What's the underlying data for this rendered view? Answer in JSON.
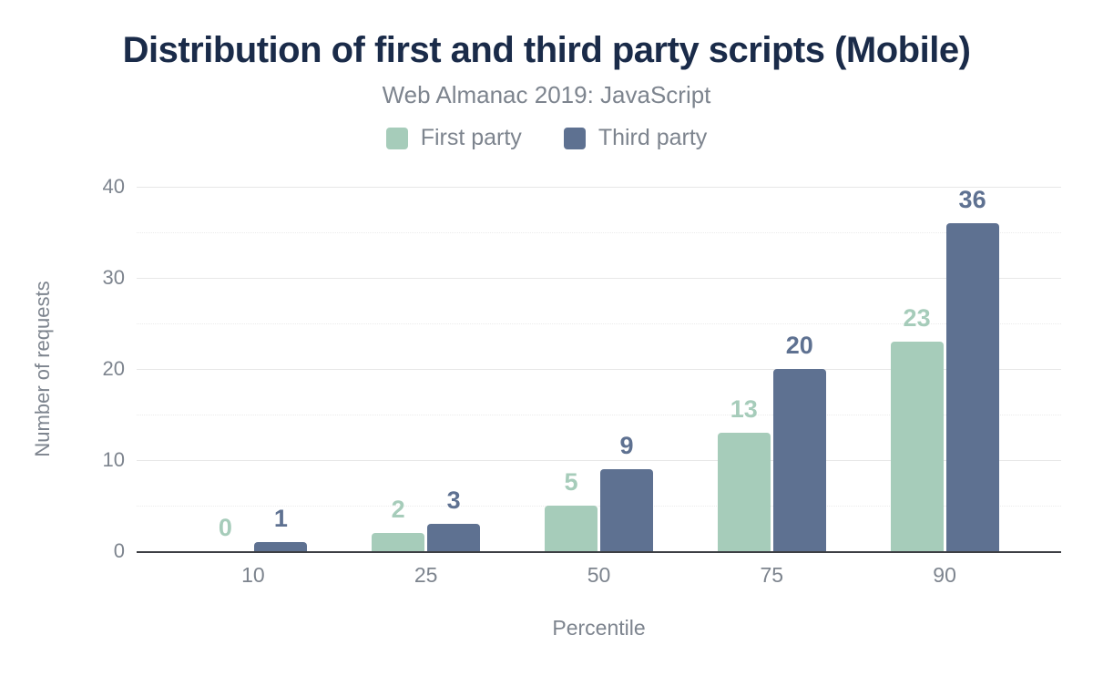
{
  "chart_data": {
    "type": "bar",
    "title": "Distribution of first and third party scripts (Mobile)",
    "subtitle": "Web Almanac 2019: JavaScript",
    "xlabel": "Percentile",
    "ylabel": "Number of requests",
    "categories": [
      "10",
      "25",
      "50",
      "75",
      "90"
    ],
    "series": [
      {
        "name": "First party",
        "color": "#a6ccba",
        "values": [
          0,
          2,
          5,
          13,
          23
        ]
      },
      {
        "name": "Third party",
        "color": "#5e7191",
        "values": [
          1,
          3,
          9,
          20,
          36
        ]
      }
    ],
    "ylim": [
      0,
      40
    ],
    "yticks": [
      0,
      10,
      20,
      30,
      40
    ],
    "minor_ticks": [
      5,
      15,
      25,
      35
    ],
    "grid": true,
    "legend_position": "top",
    "bar_labels": true
  },
  "colors": {
    "title": "#1a2b49",
    "gray_text": "#7d848e",
    "grid_major": "#e7e7e7",
    "grid_minor": "#ebebeb",
    "baseline": "#3d3f44",
    "background": "#ffffff",
    "first_party": "#a6ccba",
    "third_party": "#5e7191"
  }
}
